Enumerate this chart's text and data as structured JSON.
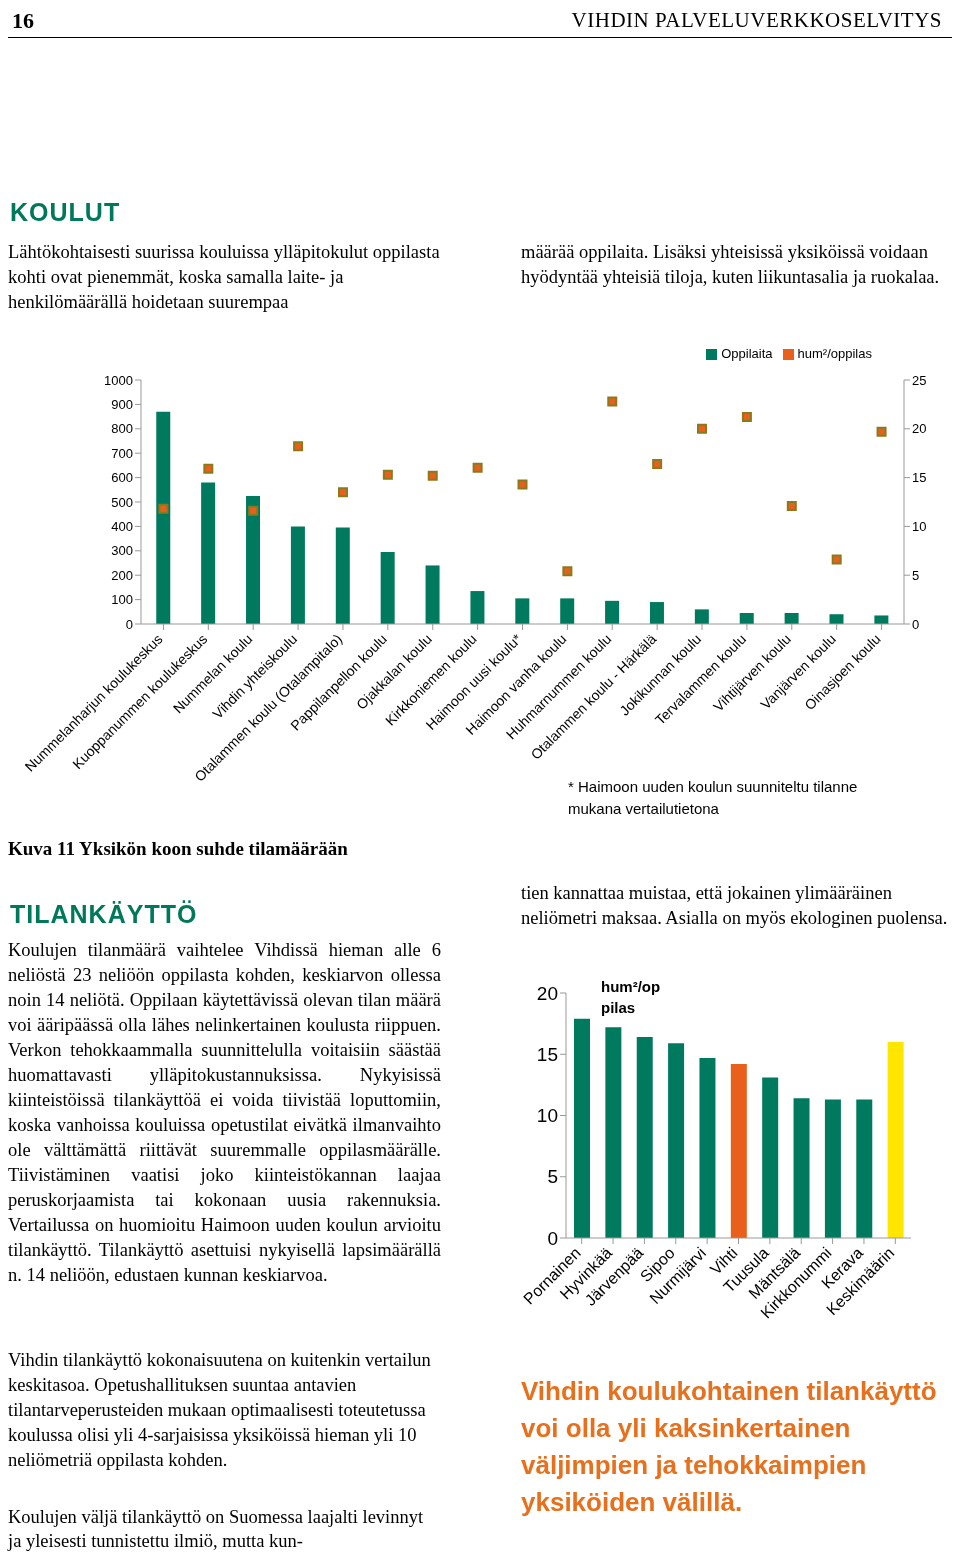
{
  "chart_data": [
    {
      "type": "bar",
      "title": "Kuva 11 Yksikön koon suhde tilamäärään",
      "categories": [
        "Nummelanharjun koulukeskus",
        "Kuoppanummen koulukeskus",
        "Nummelan koulu",
        "Vihdin yhteiskoulu",
        "Otalammen koulu (Otalampitalo)",
        "Pappilanpellon koulu",
        "Ojakkalan koulu",
        "Kirkkoniemen koulu",
        "Haimoon uusi koulu*",
        "Haimoon vanha koulu",
        "Huhmarnummen koulu",
        "Otalammen koulu - Härkälä",
        "Jokikunnan koulu",
        "Tervalammen koulu",
        "Vihtijärven koulu",
        "Vanjärven koulu",
        "Oinasjoen koulu"
      ],
      "series": [
        {
          "name": "Oppilaita",
          "type": "bar",
          "color": "#007a5e",
          "values": [
            870,
            580,
            525,
            400,
            395,
            295,
            240,
            135,
            105,
            105,
            95,
            90,
            60,
            45,
            45,
            40,
            35
          ]
        },
        {
          "name": "hum²/oppilas",
          "type": "scatter",
          "axis": "y2",
          "marker": "square",
          "color": "#e8601c",
          "values": [
            11.8,
            15.9,
            11.6,
            18.2,
            13.5,
            15.3,
            15.2,
            16.0,
            14.3,
            5.4,
            22.8,
            16.4,
            20.0,
            21.2,
            12.1,
            6.6,
            19.7
          ]
        }
      ],
      "ylim": [
        0,
        1000
      ],
      "yticks": [
        0,
        100,
        200,
        300,
        400,
        500,
        600,
        700,
        800,
        900,
        1000
      ],
      "y2lim": [
        0,
        25
      ],
      "y2ticks": [
        0,
        5,
        10,
        15,
        20,
        25
      ],
      "grid": false,
      "legend": "top right",
      "annotations": [
        "16",
        "VIHDIN PALVELUVERKKOSELVITYS",
        "KOULUT",
        "Lähtökohtaisesti suurissa kouluissa ylläpitokulut oppilasta kohti ovat pienemmät, koska samalla laite- ja henkilömäärällä hoidetaan suurempaa",
        "määrää oppilaita. Lisäksi yhteisissä yksiköissä voidaan hyödyntää yhteisiä tiloja, kuten liikuntasalia ja ruokalaa.",
        "* Haimoon uuden koulun suunniteltu tilanne mukana vertailutietona",
        "TILANKÄYTTÖ",
        "Koulujen tilanmäärä vaihtelee Vihdissä hieman alle 6 neliöstä 23 neliöön oppilasta kohden, keskiarvon ollessa noin 14 neliötä. Oppilaan käytettävissä olevan tilan määrä voi ääripäässä olla lähes nelinkertainen koulusta riippuen. Verkon tehokkaammalla suunnittelulla voitaisiin säästää huomattavasti ylläpitokustannuksissa. Nykyisissä kiinteistöissä tilankäyttöä ei voida tiivistää loputtomiin, koska vanhoissa kouluissa opetustilat eivätkä ilmanvaihto ole välttämättä riittävät suuremmalle oppilasmäärälle. Tiivistäminen vaatisi joko kiinteistökannan laajaa peruskorjaamista tai kokonaan uusia rakennuksia. Vertailussa on huomioitu Haimoon uuden koulun arvioitu tilankäyttö. Tilankäyttö asettuisi nykyisellä lapsimäärällä n. 14 neliöön, edustaen kunnan keskiarvoa.",
        "Vihdin tilankäyttö kokonaisuutena on kuitenkin vertailun keskitasoa. Opetushallituksen suuntaa antavien tilantarveperusteiden mukaan optimaalisesti toteutetussa koulussa olisi yli 4-sarjaisissa yksiköissä hieman yli 10 neliömetriä oppilasta kohden.",
        "Koulujen väljä tilankäyttö on Suomessa laajalti levinnyt ja yleisesti tunnistettu ilmiö, mutta kun-",
        "tien kannattaa muistaa, että jokainen ylimääräinen neliömetri maksaa. Asialla on myös ekologinen puolensa."
      ]
    },
    {
      "type": "bar",
      "ylabel": "hum²/oppilas",
      "categories": [
        "Pornainen",
        "Hyvinkää",
        "Järvenpää",
        "Sipoo",
        "Nurmijärvi",
        "Vihti",
        "Tuusula",
        "Mäntsälä",
        "Kirkkonummi",
        "Kerava",
        "Keskimäärin"
      ],
      "values": [
        17.9,
        17.2,
        16.4,
        15.9,
        14.7,
        14.2,
        13.1,
        11.4,
        11.3,
        11.3,
        16.0
      ],
      "colors": [
        "#007a5e",
        "#007a5e",
        "#007a5e",
        "#007a5e",
        "#007a5e",
        "#e8601c",
        "#007a5e",
        "#007a5e",
        "#007a5e",
        "#007a5e",
        "#ffe600"
      ],
      "ylim": [
        0,
        20
      ],
      "yticks": [
        0,
        5,
        10,
        15,
        20
      ],
      "grid": false,
      "annotations": [
        "Vihdin koulukohtainen tilankäyttö voi olla yli kaksinkertainen väljimpien ja tehokkaimpien yksiköiden välillä."
      ]
    }
  ]
}
